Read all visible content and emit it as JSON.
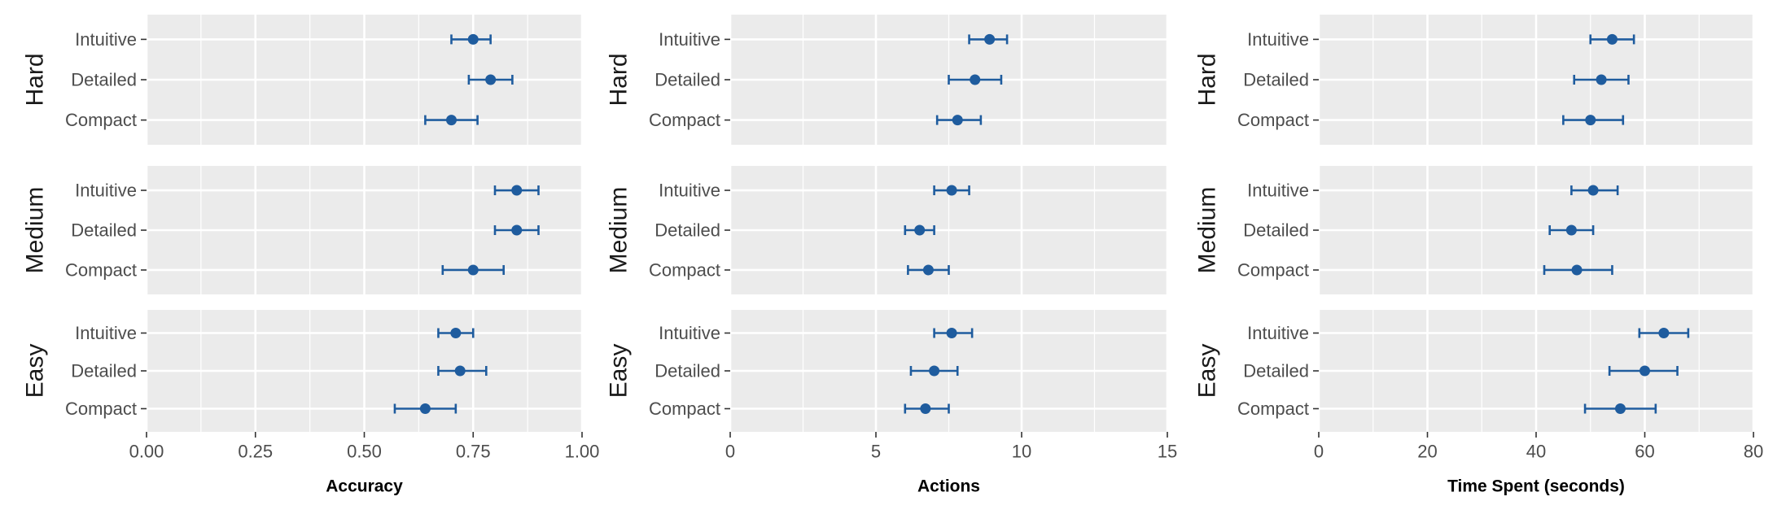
{
  "chart_data": {
    "type": "scatter",
    "style": {
      "panel_bg": "#ebebeb",
      "grid_color": "#ffffff",
      "point_color": "#1f5c9e",
      "axis_text_color": "#4d4d4d",
      "grid": true,
      "error_bars": true
    },
    "rows": [
      "Hard",
      "Medium",
      "Easy"
    ],
    "conditions": [
      "Intuitive",
      "Detailed",
      "Compact"
    ],
    "columns": [
      {
        "metric": "Accuracy",
        "xlabel": "Accuracy",
        "xlim": [
          0,
          1
        ],
        "ticks": [
          0,
          0.25,
          0.5,
          0.75,
          1
        ],
        "tick_labels": [
          "0.00",
          "0.25",
          "0.50",
          "0.75",
          "1.00"
        ],
        "panels": {
          "Hard": [
            {
              "condition": "Intuitive",
              "value": 0.75,
              "lo": 0.7,
              "hi": 0.79
            },
            {
              "condition": "Detailed",
              "value": 0.79,
              "lo": 0.74,
              "hi": 0.84
            },
            {
              "condition": "Compact",
              "value": 0.7,
              "lo": 0.64,
              "hi": 0.76
            }
          ],
          "Medium": [
            {
              "condition": "Intuitive",
              "value": 0.85,
              "lo": 0.8,
              "hi": 0.9
            },
            {
              "condition": "Detailed",
              "value": 0.85,
              "lo": 0.8,
              "hi": 0.9
            },
            {
              "condition": "Compact",
              "value": 0.75,
              "lo": 0.68,
              "hi": 0.82
            }
          ],
          "Easy": [
            {
              "condition": "Intuitive",
              "value": 0.71,
              "lo": 0.67,
              "hi": 0.75
            },
            {
              "condition": "Detailed",
              "value": 0.72,
              "lo": 0.67,
              "hi": 0.78
            },
            {
              "condition": "Compact",
              "value": 0.64,
              "lo": 0.57,
              "hi": 0.71
            }
          ]
        }
      },
      {
        "metric": "Actions",
        "xlabel": "Actions",
        "xlim": [
          0,
          15
        ],
        "ticks": [
          0,
          5,
          10,
          15
        ],
        "tick_labels": [
          "0",
          "5",
          "10",
          "15"
        ],
        "panels": {
          "Hard": [
            {
              "condition": "Intuitive",
              "value": 8.9,
              "lo": 8.2,
              "hi": 9.5
            },
            {
              "condition": "Detailed",
              "value": 8.4,
              "lo": 7.5,
              "hi": 9.3
            },
            {
              "condition": "Compact",
              "value": 7.8,
              "lo": 7.1,
              "hi": 8.6
            }
          ],
          "Medium": [
            {
              "condition": "Intuitive",
              "value": 7.6,
              "lo": 7.0,
              "hi": 8.2
            },
            {
              "condition": "Detailed",
              "value": 6.5,
              "lo": 6.0,
              "hi": 7.0
            },
            {
              "condition": "Compact",
              "value": 6.8,
              "lo": 6.1,
              "hi": 7.5
            }
          ],
          "Easy": [
            {
              "condition": "Intuitive",
              "value": 7.6,
              "lo": 7.0,
              "hi": 8.3
            },
            {
              "condition": "Detailed",
              "value": 7.0,
              "lo": 6.2,
              "hi": 7.8
            },
            {
              "condition": "Compact",
              "value": 6.7,
              "lo": 6.0,
              "hi": 7.5
            }
          ]
        }
      },
      {
        "metric": "Time Spent (seconds)",
        "xlabel": "Time Spent (seconds)",
        "xlim": [
          0,
          80
        ],
        "ticks": [
          0,
          20,
          40,
          60,
          80
        ],
        "tick_labels": [
          "0",
          "20",
          "40",
          "60",
          "80"
        ],
        "panels": {
          "Hard": [
            {
              "condition": "Intuitive",
              "value": 54,
              "lo": 50,
              "hi": 58
            },
            {
              "condition": "Detailed",
              "value": 52,
              "lo": 47,
              "hi": 57
            },
            {
              "condition": "Compact",
              "value": 50,
              "lo": 45,
              "hi": 56
            }
          ],
          "Medium": [
            {
              "condition": "Intuitive",
              "value": 50.5,
              "lo": 46.5,
              "hi": 55
            },
            {
              "condition": "Detailed",
              "value": 46.5,
              "lo": 42.5,
              "hi": 50.5
            },
            {
              "condition": "Compact",
              "value": 47.5,
              "lo": 41.5,
              "hi": 54
            }
          ],
          "Easy": [
            {
              "condition": "Intuitive",
              "value": 63.5,
              "lo": 59,
              "hi": 68
            },
            {
              "condition": "Detailed",
              "value": 60,
              "lo": 53.5,
              "hi": 66
            },
            {
              "condition": "Compact",
              "value": 55.5,
              "lo": 49,
              "hi": 62
            }
          ]
        }
      }
    ]
  }
}
